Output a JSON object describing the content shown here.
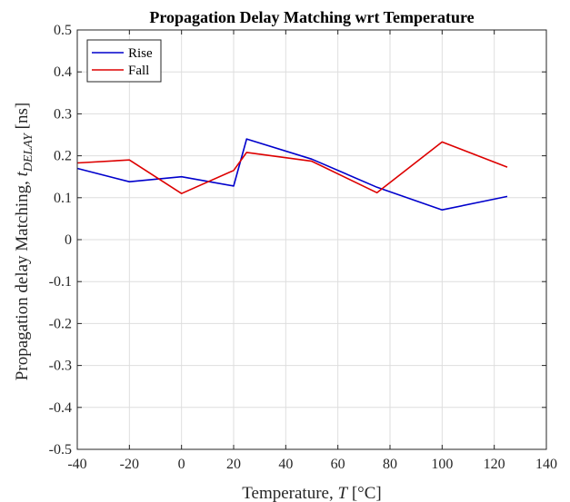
{
  "chart_data": {
    "type": "line",
    "title": "Propagation Delay Matching wrt Temperature",
    "xlabel": {
      "prefix": "Temperature, ",
      "var": "T",
      "suffix": " [°C]"
    },
    "ylabel": {
      "prefix": "Propagation delay Matching, ",
      "var": "t",
      "sub": "DELAY",
      "suffix": " [ns]"
    },
    "xlim": [
      -40,
      140
    ],
    "ylim": [
      -0.5,
      0.5
    ],
    "xticks": [
      -40,
      -20,
      0,
      20,
      40,
      60,
      80,
      100,
      120,
      140
    ],
    "yticks": [
      -0.5,
      -0.4,
      -0.3,
      -0.2,
      -0.1,
      0,
      0.1,
      0.2,
      0.3,
      0.4,
      0.5
    ],
    "xtick_labels": [
      "-40",
      "-20",
      "0",
      "20",
      "40",
      "60",
      "80",
      "100",
      "120",
      "140"
    ],
    "ytick_labels": [
      "-0.5",
      "-0.4",
      "-0.3",
      "-0.2",
      "-0.1",
      "0",
      "0.1",
      "0.2",
      "0.3",
      "0.4",
      "0.5"
    ],
    "grid": true,
    "legend_position": "top-left",
    "series": [
      {
        "name": "Rise",
        "color": "#0000cc",
        "x": [
          -40,
          -20,
          0,
          20,
          25,
          50,
          75,
          100,
          125
        ],
        "y": [
          0.17,
          0.138,
          0.15,
          0.128,
          0.24,
          0.192,
          0.125,
          0.071,
          0.103
        ]
      },
      {
        "name": "Fall",
        "color": "#dd0000",
        "x": [
          -40,
          -20,
          0,
          20,
          25,
          50,
          75,
          100,
          125
        ],
        "y": [
          0.183,
          0.19,
          0.11,
          0.165,
          0.208,
          0.187,
          0.112,
          0.233,
          0.173
        ]
      }
    ]
  }
}
